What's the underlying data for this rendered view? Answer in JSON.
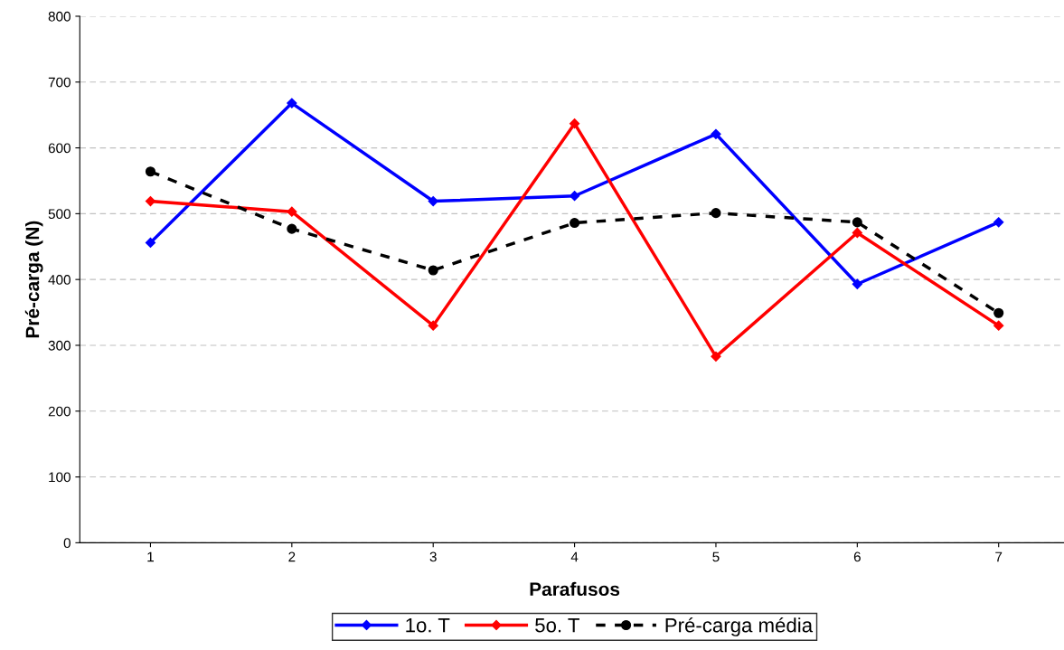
{
  "chart_data": {
    "type": "line",
    "xlabel": "Parafusos",
    "ylabel": "Pré-carga (N)",
    "categories": [
      "1",
      "2",
      "3",
      "4",
      "5",
      "6",
      "7"
    ],
    "series": [
      {
        "name": "1o. T",
        "color": "#0000ff",
        "values": [
          456,
          668,
          519,
          527,
          621,
          393,
          487
        ],
        "marker": "diamond",
        "line_style": "solid"
      },
      {
        "name": "5o. T",
        "color": "#ff0000",
        "values": [
          519,
          503,
          330,
          637,
          283,
          471,
          330
        ],
        "marker": "diamond",
        "line_style": "solid"
      },
      {
        "name": "Pré-carga média",
        "color": "#000000",
        "values": [
          564,
          477,
          414,
          486,
          501,
          487,
          349
        ],
        "marker": "circle",
        "line_style": "dashed"
      }
    ],
    "ylim": [
      0,
      800
    ],
    "yticks": [
      0,
      100,
      200,
      300,
      400,
      500,
      600,
      700,
      800
    ],
    "grid": "y",
    "legend": "bottom"
  }
}
